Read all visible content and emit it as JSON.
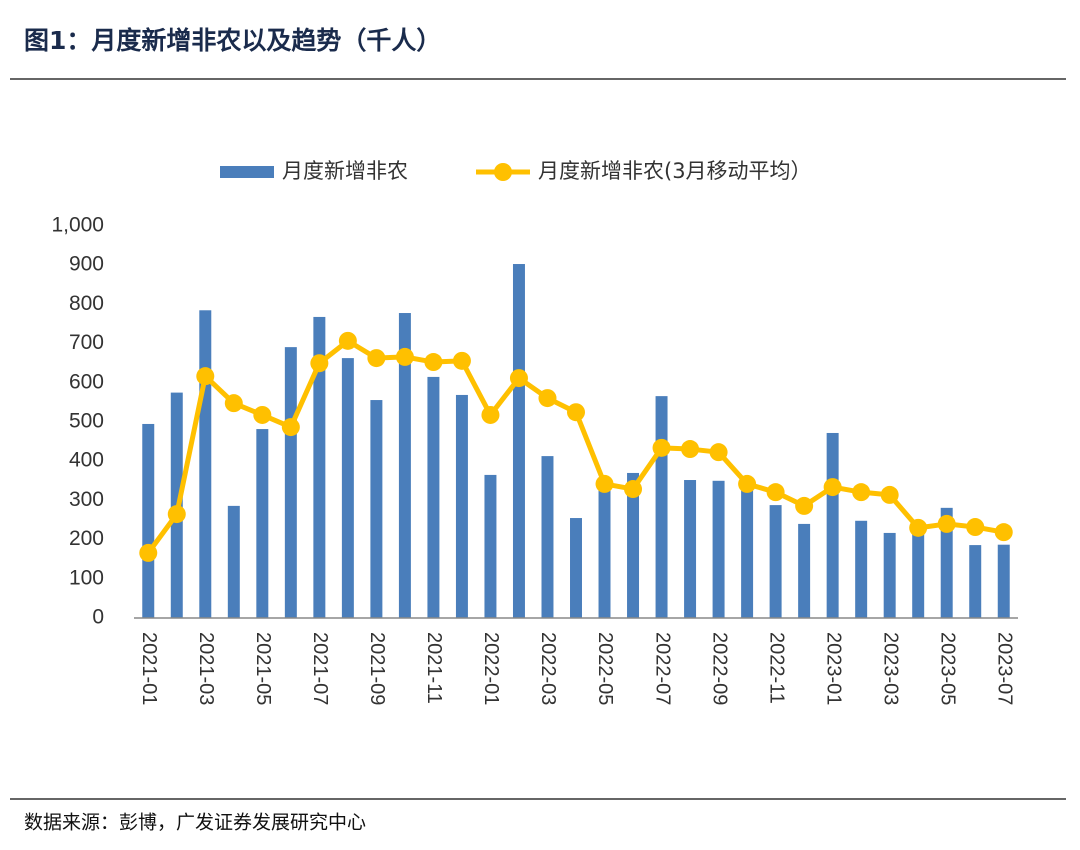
{
  "chart_data": {
    "type": "combo",
    "title": "图1：月度新增非农以及趋势（千人）",
    "categories": [
      "2021-01",
      null,
      "2021-03",
      null,
      "2021-05",
      null,
      "2021-07",
      null,
      "2021-09",
      null,
      "2021-11",
      null,
      "2022-01",
      null,
      "2022-03",
      null,
      "2022-05",
      null,
      "2022-07",
      null,
      "2022-09",
      null,
      "2022-11",
      null,
      "2023-01",
      null,
      "2023-03",
      null,
      "2023-05",
      null,
      "2023-07"
    ],
    "series": [
      {
        "name": "月度新增非农",
        "type": "bar",
        "color": "#4a7ebb",
        "values": [
          495,
          575,
          785,
          286,
          482,
          691,
          768,
          663,
          556,
          778,
          615,
          569,
          365,
          903,
          413,
          255,
          340,
          370,
          566,
          352,
          350,
          325,
          288,
          240,
          472,
          248,
          217,
          217,
          281,
          186,
          187
        ]
      },
      {
        "name": "月度新增非农(3月移动平均）",
        "type": "line",
        "color": "#ffc000",
        "values": [
          166,
          265,
          617,
          548,
          518,
          487,
          650,
          707,
          663,
          666,
          653,
          656,
          518,
          612,
          561,
          525,
          342,
          329,
          434,
          431,
          423,
          342,
          321,
          286,
          334,
          321,
          314,
          230,
          240,
          232,
          219
        ]
      }
    ],
    "ylim": [
      0,
      1000
    ],
    "yticks": [
      0,
      100,
      200,
      300,
      400,
      500,
      600,
      700,
      800,
      900,
      {
        "value": 1000,
        "label": "1,000"
      }
    ],
    "grid": false
  },
  "source": "数据来源：彭博，广发证券发展研究中心"
}
